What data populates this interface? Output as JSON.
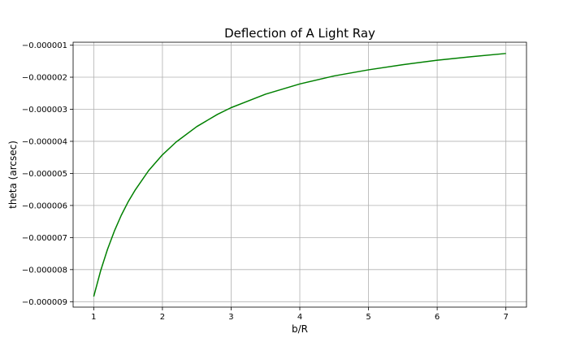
{
  "chart_data": {
    "type": "line",
    "title": "Deflection of A Light Ray",
    "xlabel": "b/R",
    "ylabel": "theta (arcsec)",
    "xlim": [
      0.7,
      7.3
    ],
    "ylim": [
      -9.17e-06,
      -9.1e-07
    ],
    "xticks": [
      1,
      2,
      3,
      4,
      5,
      6,
      7
    ],
    "xtick_labels": [
      "1",
      "2",
      "3",
      "4",
      "5",
      "6",
      "7"
    ],
    "yticks": [
      -1e-06,
      -2e-06,
      -3e-06,
      -4e-06,
      -5e-06,
      -6e-06,
      -7e-06,
      -8e-06,
      -9e-06
    ],
    "ytick_labels": [
      "−0.000001",
      "−0.000002",
      "−0.000003",
      "−0.000004",
      "−0.000005",
      "−0.000006",
      "−0.000007",
      "−0.000008",
      "−0.000009"
    ],
    "grid": true,
    "series": [
      {
        "color": "#008000",
        "x": [
          1.0,
          1.1,
          1.2,
          1.3,
          1.4,
          1.5,
          1.6,
          1.8,
          2.0,
          2.2,
          2.5,
          2.8,
          3.0,
          3.5,
          4.0,
          4.5,
          5.0,
          5.5,
          6.0,
          6.5,
          7.0
        ],
        "y": [
          -8.84e-06,
          -8.04e-06,
          -7.37e-06,
          -6.8e-06,
          -6.31e-06,
          -5.89e-06,
          -5.53e-06,
          -4.91e-06,
          -4.42e-06,
          -4.02e-06,
          -3.54e-06,
          -3.16e-06,
          -2.95e-06,
          -2.53e-06,
          -2.21e-06,
          -1.96e-06,
          -1.77e-06,
          -1.61e-06,
          -1.47e-06,
          -1.36e-06,
          -1.26e-06
        ]
      }
    ]
  }
}
